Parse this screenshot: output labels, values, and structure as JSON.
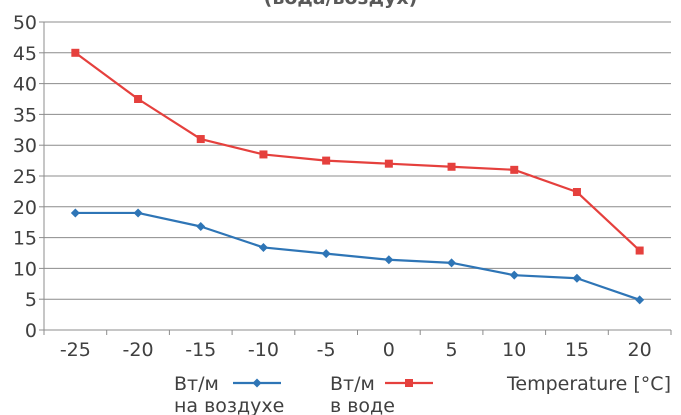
{
  "chart_data": {
    "type": "line",
    "title": "(вода/воздух)",
    "categories": [
      "-25",
      "-20",
      "-15",
      "-10",
      "-5",
      "0",
      "5",
      "10",
      "15",
      "20"
    ],
    "ylim": [
      0,
      50
    ],
    "yticks": [
      "0",
      "5",
      "10",
      "15",
      "20",
      "25",
      "30",
      "35",
      "40",
      "45",
      "50"
    ],
    "grid": true,
    "legend_position": "bottom",
    "series": [
      {
        "name_line1": "Вт/м",
        "name_line2": "на воздухе",
        "color": "#2e75b6",
        "marker": "diamond",
        "values": [
          19,
          19,
          16.8,
          13.4,
          12.4,
          11.4,
          10.9,
          8.9,
          8.4,
          4.9
        ]
      },
      {
        "name_line1": "Вт/м",
        "name_line2": "в воде",
        "color": "#e5403d",
        "marker": "square",
        "values": [
          45,
          37.5,
          31,
          28.5,
          27.5,
          27,
          26.5,
          26,
          22.4,
          12.9
        ]
      }
    ],
    "extra_legend": "Temperature [°C]"
  }
}
